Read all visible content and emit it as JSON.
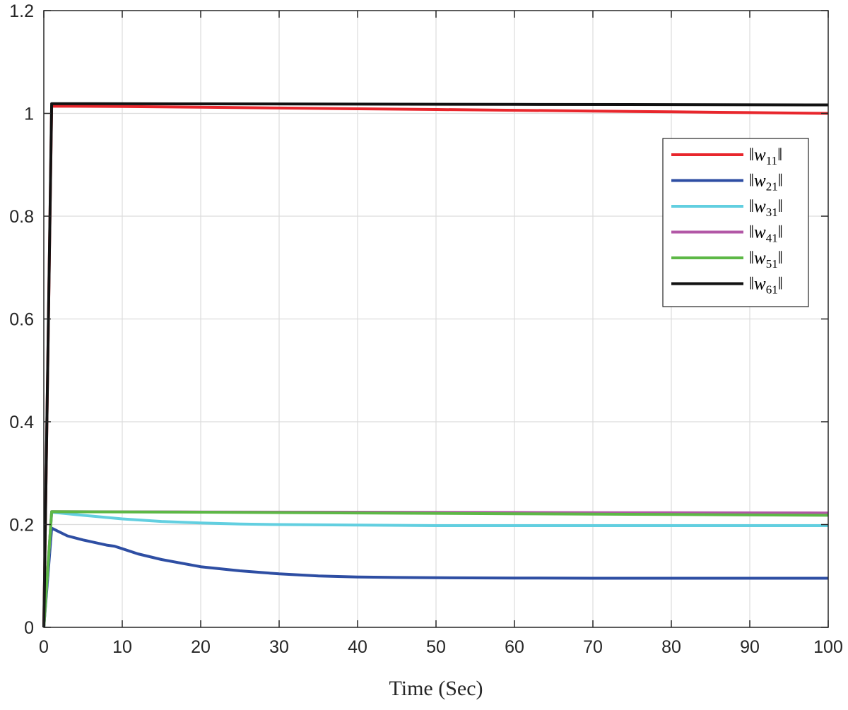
{
  "chart_data": {
    "type": "line",
    "title": "",
    "xlabel": "Time (Sec)",
    "ylabel": "",
    "xlim": [
      0,
      100
    ],
    "ylim": [
      0,
      1.2
    ],
    "xticks": [
      0,
      10,
      20,
      30,
      40,
      50,
      60,
      70,
      80,
      90,
      100
    ],
    "yticks": [
      0,
      0.2,
      0.4,
      0.6,
      0.8,
      1,
      1.2
    ],
    "xtick_labels": [
      "0",
      "10",
      "20",
      "30",
      "40",
      "50",
      "60",
      "70",
      "80",
      "90",
      "100"
    ],
    "ytick_labels": [
      "0",
      "0.2",
      "0.4",
      "0.6",
      "0.8",
      "1",
      "1.2"
    ],
    "grid": true,
    "legend_position": "top-right",
    "series": [
      {
        "name": "‖w11‖",
        "label_base": "w",
        "label_sub": "11",
        "color": "#e8262c",
        "points": [
          [
            0,
            0
          ],
          [
            1,
            1.014
          ],
          [
            10,
            1.0135
          ],
          [
            20,
            1.012
          ],
          [
            30,
            1.0105
          ],
          [
            40,
            1.009
          ],
          [
            50,
            1.0075
          ],
          [
            60,
            1.006
          ],
          [
            70,
            1.0045
          ],
          [
            80,
            1.003
          ],
          [
            90,
            1.0015
          ],
          [
            100,
            1.0
          ]
        ]
      },
      {
        "name": "‖w21‖",
        "label_base": "w",
        "label_sub": "21",
        "color": "#2e4ea3",
        "points": [
          [
            0,
            0
          ],
          [
            1,
            0.193
          ],
          [
            3,
            0.178
          ],
          [
            5,
            0.17
          ],
          [
            8,
            0.16
          ],
          [
            9,
            0.158
          ],
          [
            10,
            0.153
          ],
          [
            12,
            0.143
          ],
          [
            15,
            0.132
          ],
          [
            20,
            0.118
          ],
          [
            25,
            0.11
          ],
          [
            30,
            0.104
          ],
          [
            35,
            0.1
          ],
          [
            40,
            0.098
          ],
          [
            45,
            0.097
          ],
          [
            50,
            0.0965
          ],
          [
            60,
            0.096
          ],
          [
            70,
            0.0955
          ],
          [
            80,
            0.0955
          ],
          [
            90,
            0.0955
          ],
          [
            100,
            0.0955
          ]
        ]
      },
      {
        "name": "‖w31‖",
        "label_base": "w",
        "label_sub": "31",
        "color": "#62cfe0",
        "points": [
          [
            0,
            0
          ],
          [
            1,
            0.224
          ],
          [
            5,
            0.218
          ],
          [
            10,
            0.211
          ],
          [
            15,
            0.206
          ],
          [
            20,
            0.203
          ],
          [
            25,
            0.201
          ],
          [
            30,
            0.2
          ],
          [
            40,
            0.199
          ],
          [
            50,
            0.198
          ],
          [
            60,
            0.198
          ],
          [
            70,
            0.198
          ],
          [
            80,
            0.198
          ],
          [
            90,
            0.198
          ],
          [
            100,
            0.198
          ]
        ]
      },
      {
        "name": "‖w41‖",
        "label_base": "w",
        "label_sub": "41",
        "color": "#b257a6",
        "points": [
          [
            0,
            0
          ],
          [
            1,
            0.225
          ],
          [
            20,
            0.2245
          ],
          [
            40,
            0.224
          ],
          [
            60,
            0.2235
          ],
          [
            80,
            0.223
          ],
          [
            100,
            0.2225
          ]
        ]
      },
      {
        "name": "‖w51‖",
        "label_base": "w",
        "label_sub": "51",
        "color": "#5db846",
        "points": [
          [
            0,
            0
          ],
          [
            1,
            0.225
          ],
          [
            20,
            0.224
          ],
          [
            40,
            0.2225
          ],
          [
            60,
            0.221
          ],
          [
            80,
            0.2195
          ],
          [
            100,
            0.218
          ]
        ]
      },
      {
        "name": "‖w61‖",
        "label_base": "w",
        "label_sub": "61",
        "color": "#111111",
        "points": [
          [
            0,
            0
          ],
          [
            1,
            1.019
          ],
          [
            20,
            1.0185
          ],
          [
            40,
            1.018
          ],
          [
            60,
            1.0175
          ],
          [
            80,
            1.017
          ],
          [
            100,
            1.0165
          ]
        ]
      }
    ]
  }
}
